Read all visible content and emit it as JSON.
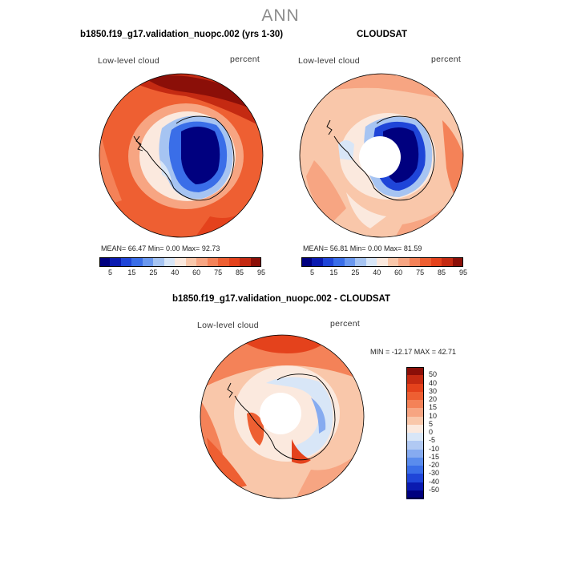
{
  "main_title": "ANN",
  "panel1": {
    "title": "b1850.f19_g17.validation_nuopc.002 (yrs 1-30)",
    "left_label": "Low-level cloud",
    "right_label": "percent",
    "stats": "MEAN=  66.47   Min=    0.00   Max=  92.73"
  },
  "panel2": {
    "title": "CLOUDSAT",
    "left_label": "Low-level cloud",
    "right_label": "percent",
    "stats": "MEAN=  56.81   Min=    0.00   Max=  81.59"
  },
  "panel3": {
    "title": "b1850.f19_g17.validation_nuopc.002 - CLOUDSAT",
    "left_label": "Low-level cloud",
    "right_label": "percent",
    "stats": "MIN = -12.17 MAX =  42.71"
  },
  "colors": {
    "abs_scale": [
      "#00007f",
      "#0a1ab0",
      "#1f45d8",
      "#3a6ee8",
      "#6a98ef",
      "#a6c4f2",
      "#d8e6f7",
      "#fbe9de",
      "#f9c7aa",
      "#f7a582",
      "#f48258",
      "#ee5f32",
      "#e4421c",
      "#c42a12",
      "#8b0f08"
    ],
    "diff_scale": [
      "#00007f",
      "#0a1ab0",
      "#1f45d8",
      "#3a6ee8",
      "#5a8ced",
      "#86abf0",
      "#b1c9f3",
      "#d8e6f7",
      "#fbe9de",
      "#f9c7aa",
      "#f7a582",
      "#f48258",
      "#ee5f32",
      "#e4421c",
      "#c42a12",
      "#8b0f08"
    ]
  },
  "chart_data": [
    {
      "type": "heatmap",
      "projection": "south-polar-stereographic",
      "title": "b1850.f19_g17.validation_nuopc.002 (yrs 1-30)",
      "variable": "Low-level cloud",
      "units": "percent",
      "mean": 66.47,
      "min": 0.0,
      "max": 92.73,
      "colorbar_ticks": [
        "5",
        "15",
        "25",
        "40",
        "60",
        "75",
        "85",
        "95"
      ]
    },
    {
      "type": "heatmap",
      "projection": "south-polar-stereographic",
      "title": "CLOUDSAT",
      "variable": "Low-level cloud",
      "units": "percent",
      "mean": 56.81,
      "min": 0.0,
      "max": 81.59,
      "colorbar_ticks": [
        "5",
        "15",
        "25",
        "40",
        "60",
        "75",
        "85",
        "95"
      ]
    },
    {
      "type": "heatmap",
      "projection": "south-polar-stereographic",
      "title": "b1850.f19_g17.validation_nuopc.002 - CLOUDSAT",
      "variable": "Low-level cloud",
      "units": "percent",
      "min": -12.17,
      "max": 42.71,
      "colorbar_ticks": [
        "50",
        "40",
        "30",
        "20",
        "15",
        "10",
        "5",
        "0",
        "-5",
        "-10",
        "-15",
        "-20",
        "-30",
        "-40",
        "-50"
      ]
    }
  ]
}
